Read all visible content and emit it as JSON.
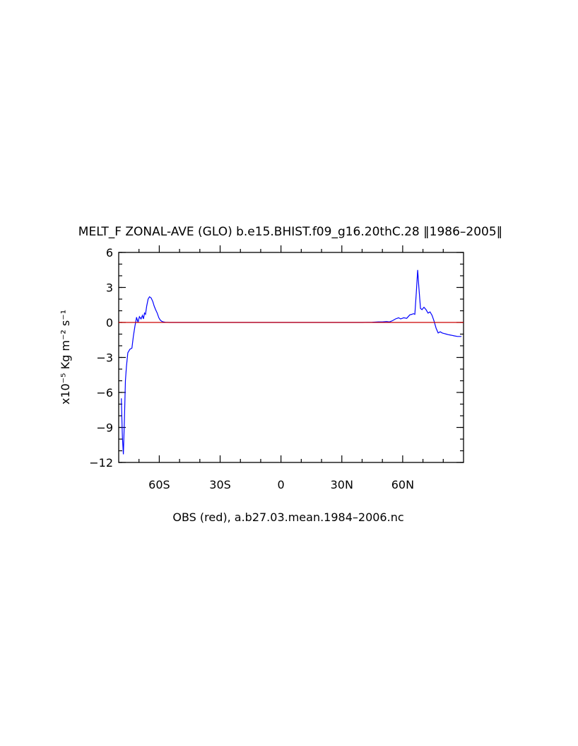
{
  "chart_data": {
    "type": "line",
    "title": "MELT_F ZONAL-AVE (GLO) b.e15.BHIST.f09_g16.20thC.28 ‖1986–2005‖",
    "xlabel": "OBS (red), a.b27.03.mean.1984–2006.nc",
    "ylabel": "x10⁻⁵ Kg m⁻² s⁻¹",
    "xlim": [
      -80,
      90
    ],
    "ylim": [
      -12,
      6
    ],
    "x_ticks": [
      {
        "value": -60,
        "label": "60S"
      },
      {
        "value": -30,
        "label": "30S"
      },
      {
        "value": 0,
        "label": "0"
      },
      {
        "value": 30,
        "label": "30N"
      },
      {
        "value": 60,
        "label": "60N"
      }
    ],
    "y_ticks": [
      {
        "value": 6,
        "label": "6"
      },
      {
        "value": 3,
        "label": "3"
      },
      {
        "value": 0,
        "label": "0"
      },
      {
        "value": -3,
        "label": "−3"
      },
      {
        "value": -6,
        "label": "−6"
      },
      {
        "value": -9,
        "label": "−9"
      },
      {
        "value": -12,
        "label": "−12"
      }
    ],
    "series": [
      {
        "color": "#0000ff",
        "x": [
          -78.7,
          -78.2,
          -77.7,
          -77.2,
          -76.7,
          -76.2,
          -75.5,
          -74.5,
          -73.5,
          -72.8,
          -72.0,
          -71.2,
          -70.5,
          -69.8,
          -69.0,
          -68.3,
          -67.8,
          -67.3,
          -66.8,
          -66.2,
          -65.5,
          -64.8,
          -64.0,
          -63.2,
          -62.5,
          -61.8,
          -61.0,
          -60.2,
          -59.5,
          -58.8,
          -58.0,
          -57.0,
          -55.0,
          -50.0,
          -40.0,
          -20.0,
          0.0,
          20.0,
          40.0,
          45.0,
          48.0,
          50.0,
          52.0,
          53.5,
          55.0,
          56.5,
          58.0,
          59.0,
          60.5,
          62.0,
          63.5,
          64.5,
          65.3,
          66.0,
          66.7,
          67.4,
          68.0,
          68.8,
          69.5,
          70.5,
          71.5,
          72.5,
          73.5,
          74.5,
          75.5,
          76.5,
          77.5,
          78.5,
          79.5,
          80.5,
          81.5,
          82.5,
          84.0,
          85.5,
          87.0,
          89.0
        ],
        "values": [
          -6.5,
          -9.8,
          -11.3,
          -8.5,
          -5.0,
          -3.8,
          -2.6,
          -2.3,
          -2.2,
          -1.2,
          -0.3,
          0.45,
          0.0,
          0.5,
          0.3,
          0.6,
          0.3,
          0.8,
          0.7,
          1.4,
          2.0,
          2.2,
          2.1,
          1.8,
          1.4,
          1.1,
          0.8,
          0.4,
          0.2,
          0.1,
          0.05,
          0.02,
          0.0,
          0.0,
          0.0,
          0.0,
          0.0,
          0.0,
          0.0,
          0.02,
          0.05,
          0.05,
          0.08,
          0.05,
          0.15,
          0.3,
          0.4,
          0.3,
          0.4,
          0.35,
          0.65,
          0.7,
          0.75,
          0.7,
          2.5,
          4.5,
          3.0,
          1.2,
          1.1,
          1.3,
          1.1,
          0.8,
          0.9,
          0.6,
          0.1,
          -0.5,
          -0.9,
          -0.8,
          -0.9,
          -0.95,
          -1.0,
          -1.05,
          -1.1,
          -1.15,
          -1.2,
          -1.2
        ]
      },
      {
        "color": "#cc0000",
        "x": [
          -80,
          90
        ],
        "values": [
          0,
          0
        ]
      }
    ]
  }
}
